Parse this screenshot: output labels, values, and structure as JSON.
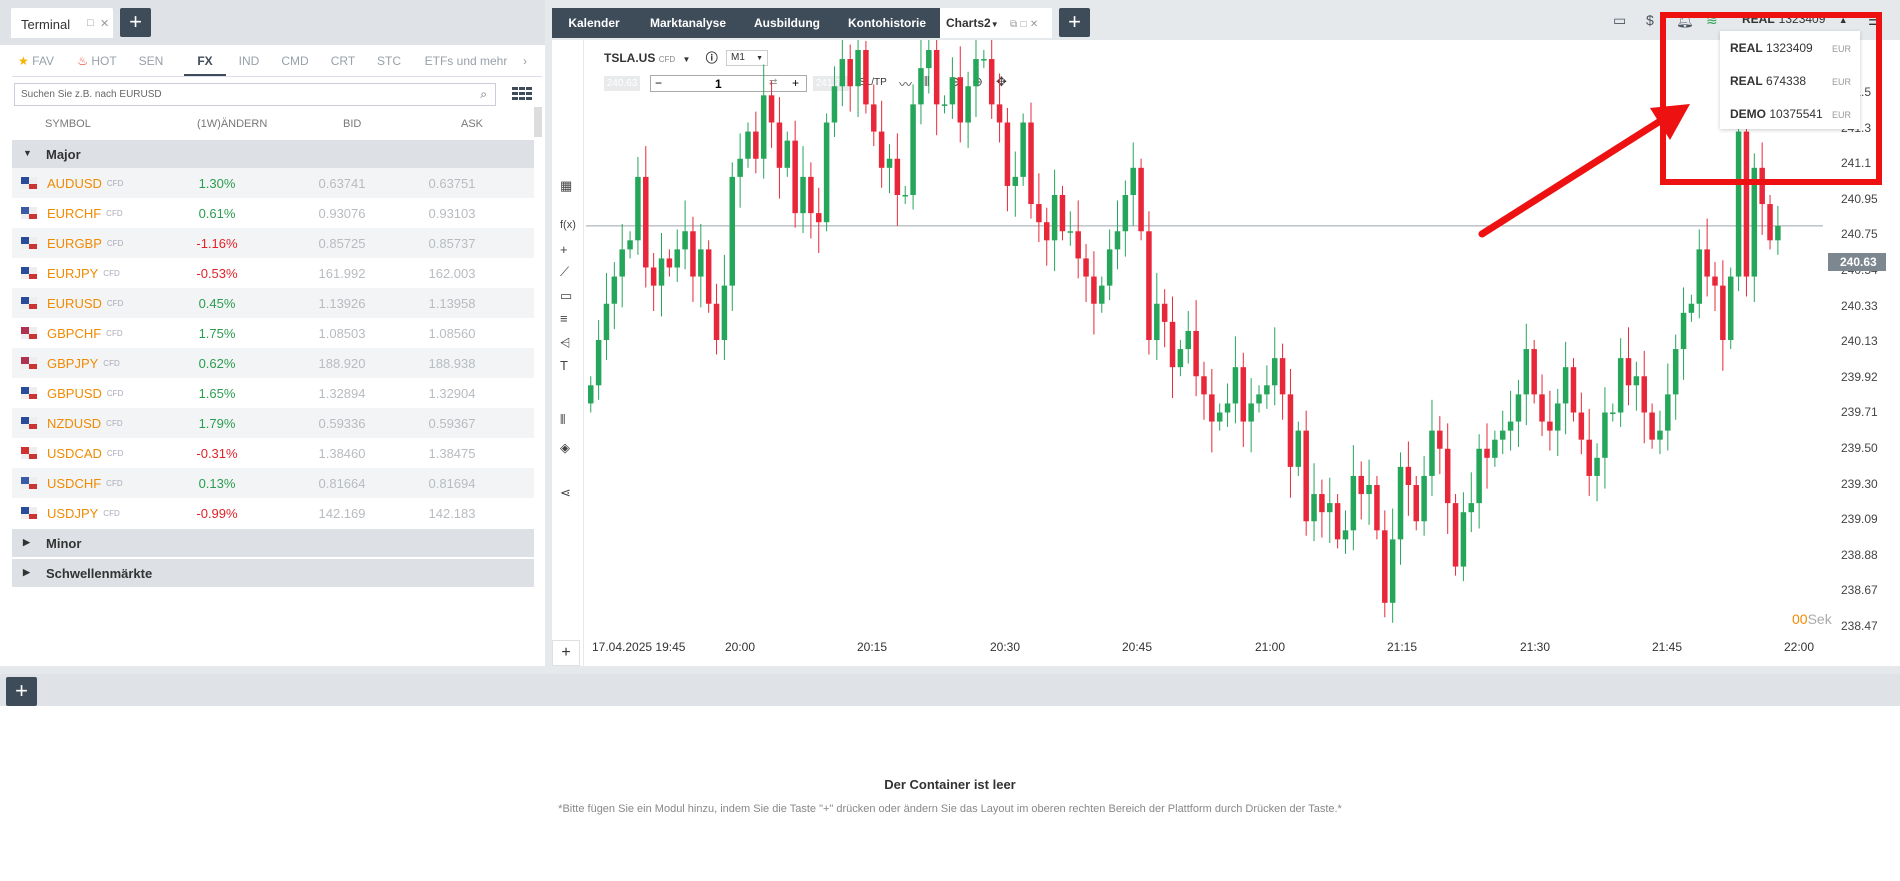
{
  "left_panel": {
    "tab_title": "Terminal",
    "categories": [
      "FAV",
      "HOT",
      "SEN",
      "FX",
      "IND",
      "CMD",
      "CRT",
      "STC",
      "ETFs und mehr"
    ],
    "search_placeholder": "Suchen Sie z.B. nach EURUSD",
    "columns": {
      "symbol": "SYMBOL",
      "change": "(1W)ÄNDERN",
      "bid": "BID",
      "ask": "ASK"
    },
    "groups": [
      "Major",
      "Minor",
      "Schwellenmärkte"
    ],
    "cfd_label": "CFD",
    "rows": [
      {
        "symbol": "AUDUSD",
        "change": "1.30%",
        "bid": "0.63741",
        "ask": "0.63751"
      },
      {
        "symbol": "EURCHF",
        "change": "0.61%",
        "bid": "0.93076",
        "ask": "0.93103"
      },
      {
        "symbol": "EURGBP",
        "change": "-1.16%",
        "bid": "0.85725",
        "ask": "0.85737"
      },
      {
        "symbol": "EURJPY",
        "change": "-0.53%",
        "bid": "161.992",
        "ask": "162.003"
      },
      {
        "symbol": "EURUSD",
        "change": "0.45%",
        "bid": "1.13926",
        "ask": "1.13958"
      },
      {
        "symbol": "GBPCHF",
        "change": "1.75%",
        "bid": "1.08503",
        "ask": "1.08560"
      },
      {
        "symbol": "GBPJPY",
        "change": "0.62%",
        "bid": "188.920",
        "ask": "188.938"
      },
      {
        "symbol": "GBPUSD",
        "change": "1.65%",
        "bid": "1.32894",
        "ask": "1.32904"
      },
      {
        "symbol": "NZDUSD",
        "change": "1.79%",
        "bid": "0.59336",
        "ask": "0.59367"
      },
      {
        "symbol": "USDCAD",
        "change": "-0.31%",
        "bid": "1.38460",
        "ask": "1.38475"
      },
      {
        "symbol": "USDCHF",
        "change": "0.13%",
        "bid": "0.81664",
        "ask": "0.81694"
      },
      {
        "symbol": "USDJPY",
        "change": "-0.99%",
        "bid": "142.169",
        "ask": "142.183"
      }
    ]
  },
  "right_tabs": [
    "Kalender",
    "Marktanalyse",
    "Ausbildung",
    "Kontohistorie",
    "Charts2"
  ],
  "account": {
    "selected_type": "REAL",
    "selected_number": "1323409",
    "options": [
      {
        "type": "REAL",
        "number": "1323409",
        "currency": "EUR"
      },
      {
        "type": "REAL",
        "number": "674338",
        "currency": "EUR"
      },
      {
        "type": "DEMO",
        "number": "10375541",
        "currency": "EUR"
      }
    ]
  },
  "chart": {
    "symbol": "TSLA.US",
    "cfd": "CFD",
    "timeframe": "M1",
    "sell_price": "240.63",
    "buy_price": "241.73",
    "quantity": "1",
    "sltp": "SL/TP",
    "current_price": "240.63",
    "price_ticks": [
      "241.5",
      "241.3",
      "241.1",
      "240.95",
      "240.75",
      "240.54",
      "240.33",
      "240.13",
      "239.92",
      "239.71",
      "239.50",
      "239.30",
      "239.09",
      "238.88",
      "238.67",
      "238.47"
    ],
    "time_ticks": [
      "17.04.2025 19:45",
      "20:00",
      "20:15",
      "20:30",
      "20:45",
      "21:00",
      "21:15",
      "21:30",
      "21:45",
      "22:00"
    ],
    "countdown_num": "00",
    "countdown_unit": "Sek"
  },
  "chart_data": {
    "type": "candlestick",
    "ylim": [
      238.4,
      241.6
    ],
    "closes": [
      239.75,
      240.0,
      240.2,
      240.35,
      240.5,
      240.55,
      240.9,
      240.4,
      240.3,
      240.45,
      240.4,
      240.5,
      240.6,
      240.35,
      240.5,
      240.2,
      240.0,
      240.3,
      240.9,
      241.0,
      241.15,
      241.0,
      241.35,
      241.2,
      240.95,
      241.1,
      240.7,
      240.9,
      240.7,
      240.65,
      241.2,
      241.4,
      241.55,
      241.4,
      241.6,
      241.3,
      241.15,
      240.95,
      241.0,
      240.8,
      240.8,
      241.3,
      241.5,
      241.6,
      241.3,
      241.3,
      241.45,
      241.2,
      241.4,
      241.55,
      241.55,
      241.3,
      241.2,
      240.85,
      240.9,
      241.2,
      240.75,
      240.65,
      240.55,
      240.8,
      240.6,
      240.6,
      240.45,
      240.35,
      240.2,
      240.3,
      240.5,
      240.6,
      240.8,
      240.95,
      240.6,
      240.0,
      240.2,
      240.1,
      239.85,
      239.95,
      240.05,
      239.8,
      239.7,
      239.55,
      239.6,
      239.65,
      239.85,
      239.55,
      239.65,
      239.7,
      239.75,
      239.9,
      239.7,
      239.3,
      239.5,
      239.0,
      239.15,
      239.05,
      239.1,
      238.9,
      238.95,
      239.25,
      239.15,
      239.2,
      238.95,
      238.55,
      238.9,
      239.3,
      239.2,
      239.0,
      239.25,
      239.5,
      239.4,
      239.1,
      238.75,
      239.05,
      239.1,
      239.4,
      239.35,
      239.45,
      239.5,
      239.55,
      239.7,
      239.95,
      239.7,
      239.55,
      239.5,
      239.65,
      239.85,
      239.6,
      239.45,
      239.25,
      239.35,
      239.6,
      239.6,
      239.9,
      239.75,
      239.8,
      239.6,
      239.45,
      239.5,
      239.7,
      239.95,
      240.15,
      240.2,
      240.5,
      240.35,
      240.3,
      240.0,
      240.35,
      241.15,
      240.35,
      240.95,
      240.75,
      240.55,
      240.63
    ],
    "last": 240.63
  }
}
